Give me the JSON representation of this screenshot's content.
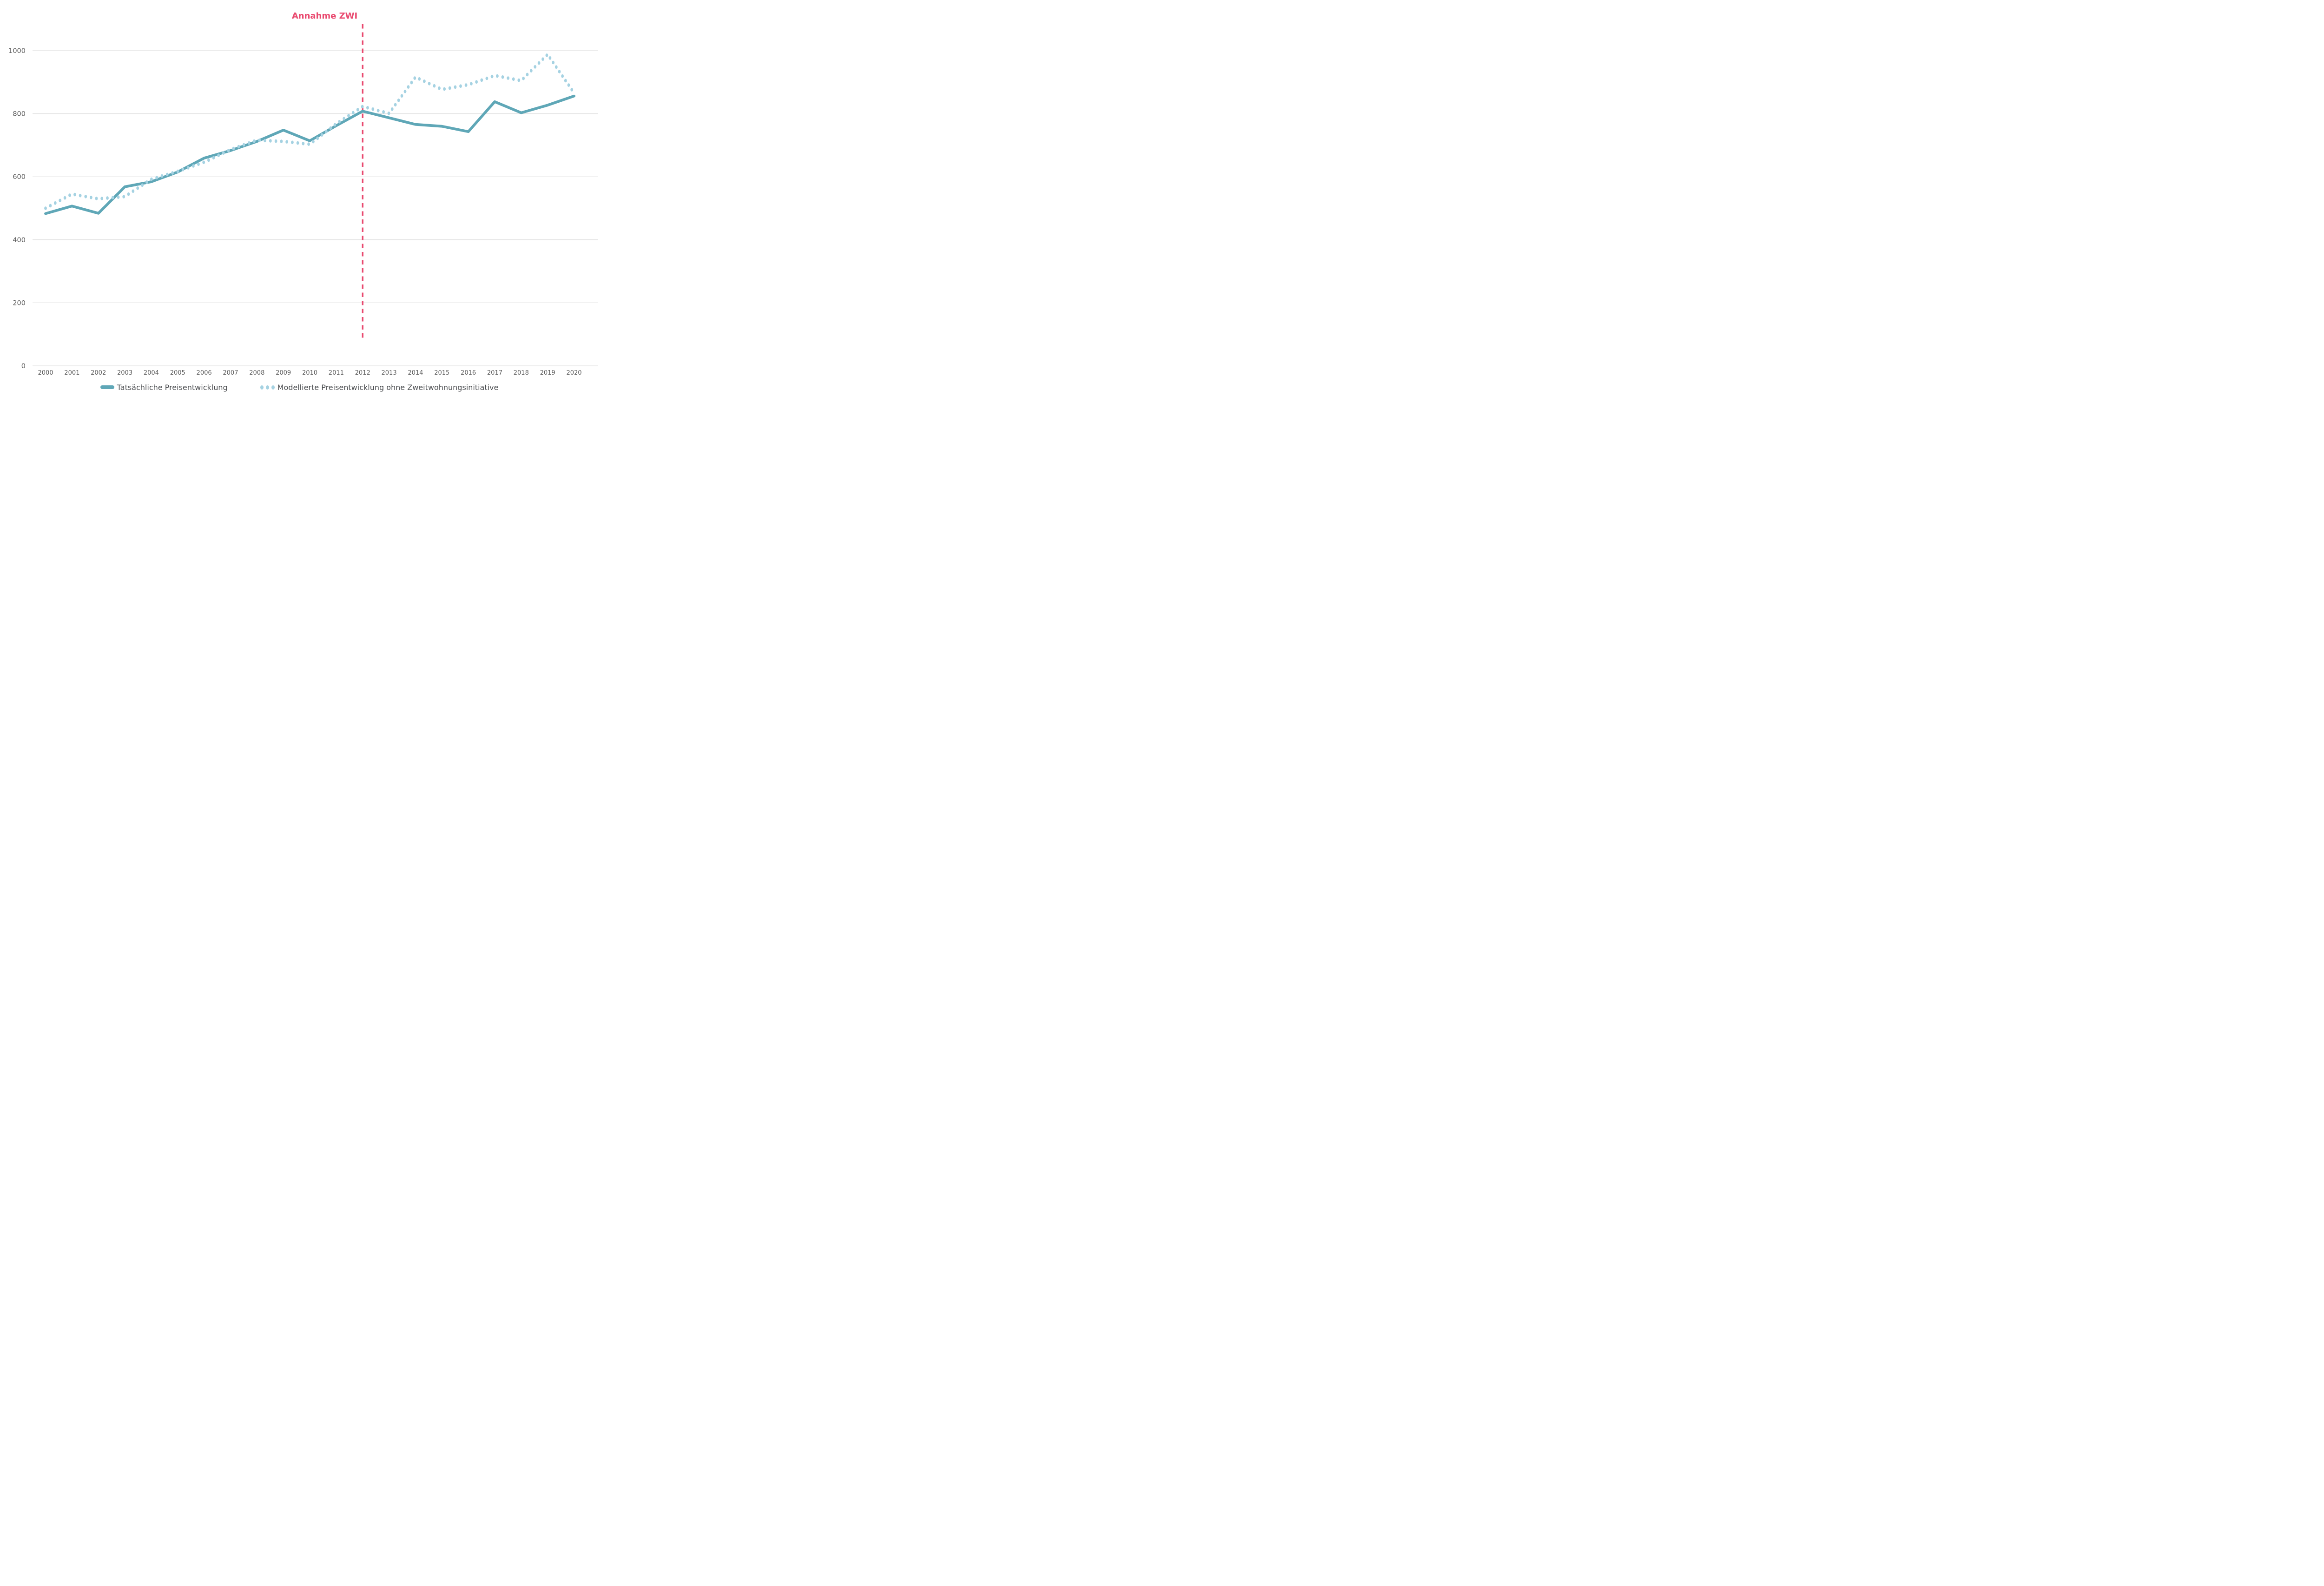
{
  "annotation": {
    "label": "Annahme ZWI",
    "x": 2012
  },
  "legend": {
    "items": [
      {
        "label": "Tatsächliche Preisentwicklung",
        "swatch": "solid-line"
      },
      {
        "label": "Modellierte Preisentwicklung ohne Zweitwohnungsinitiative",
        "swatch": "dotted-line"
      }
    ],
    "position": "bottom-center"
  },
  "colors": {
    "actual_line": "#5fa7b7",
    "modeled_line": "#a5d2e2",
    "annotation": "#e9496f",
    "gridline": "#d9d9d9",
    "tick_text": "#595959",
    "legend_text": "#4b4d50",
    "background": "#ffffff"
  },
  "chart_data": {
    "type": "line",
    "title": "",
    "xlabel": "",
    "ylabel": "",
    "grid": "horizontal",
    "legend_position": "bottom",
    "x": [
      2000,
      2001,
      2002,
      2003,
      2004,
      2005,
      2006,
      2007,
      2008,
      2009,
      2010,
      2011,
      2012,
      2013,
      2014,
      2015,
      2016,
      2017,
      2018,
      2019,
      2020
    ],
    "x_tick_labels": [
      "2000",
      "2001",
      "2002",
      "2003",
      "2004",
      "2005",
      "2006",
      "2007",
      "2008",
      "2009",
      "2010",
      "2011",
      "2012",
      "2013",
      "2014",
      "2015",
      "2016",
      "2017",
      "2018",
      "2019",
      "2020"
    ],
    "y_ticks": [
      0,
      200,
      400,
      600,
      800,
      1000
    ],
    "ylim": [
      0,
      1080
    ],
    "series": [
      {
        "name": "Tatsächliche Preisentwicklung",
        "style": "solid",
        "color": "#5fa7b7",
        "values": [
          483,
          507,
          484,
          568,
          584,
          615,
          659,
          683,
          712,
          748,
          714,
          762,
          808,
          787,
          766,
          760,
          743,
          838,
          803,
          827,
          856
        ]
      },
      {
        "name": "Modellierte Preisentwicklung ohne Zweitwohnungsinitiative",
        "style": "dotted",
        "color": "#a5d2e2",
        "values": [
          500,
          545,
          530,
          537,
          592,
          617,
          646,
          686,
          716,
          712,
          703,
          768,
          823,
          801,
          916,
          877,
          892,
          921,
          905,
          988,
          866
        ]
      }
    ],
    "annotation_line": {
      "label": "Annahme ZWI",
      "x": 2012,
      "style": "dashed-vertical",
      "color": "#e9496f"
    }
  }
}
